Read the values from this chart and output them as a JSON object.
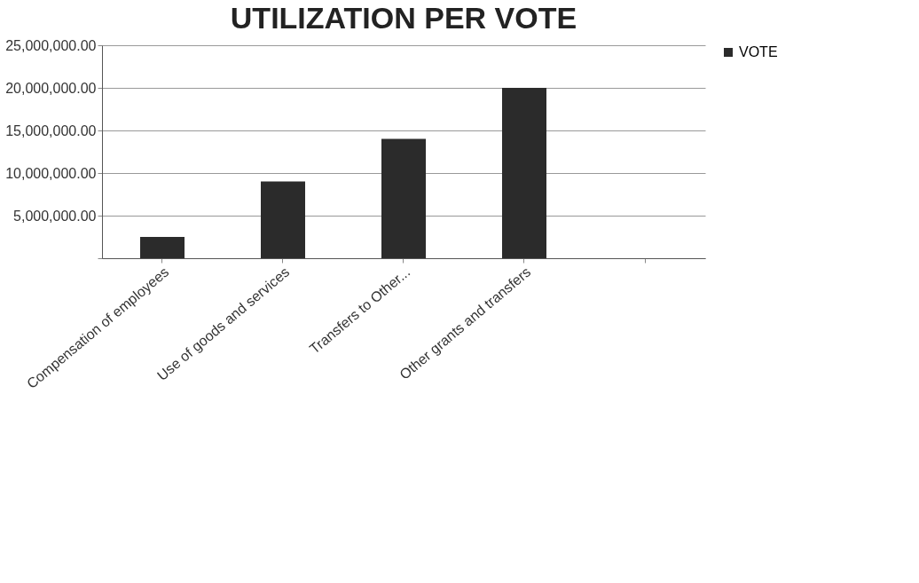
{
  "chart_data": {
    "type": "bar",
    "title": "UTILIZATION PER VOTE",
    "categories": [
      "Compensation of employees",
      "Use of goods and services",
      "Transfers to Other...",
      "Other grants and transfers",
      null
    ],
    "series": [
      {
        "name": "VOTE",
        "color": "#2b2b2b",
        "values": [
          2500000,
          9000000,
          14000000,
          20000000,
          null
        ]
      }
    ],
    "ylim": [
      0,
      25000000
    ],
    "yticks": [
      {
        "value": 0,
        "label": null
      },
      {
        "value": 5000000,
        "label": "5,000,000.00"
      },
      {
        "value": 10000000,
        "label": "10,000,000.00"
      },
      {
        "value": 15000000,
        "label": "15,000,000.00"
      },
      {
        "value": 20000000,
        "label": "20,000,000.00"
      },
      {
        "value": 25000000,
        "label": "25,000,000.00"
      }
    ],
    "grid": "y",
    "legend": "right"
  }
}
